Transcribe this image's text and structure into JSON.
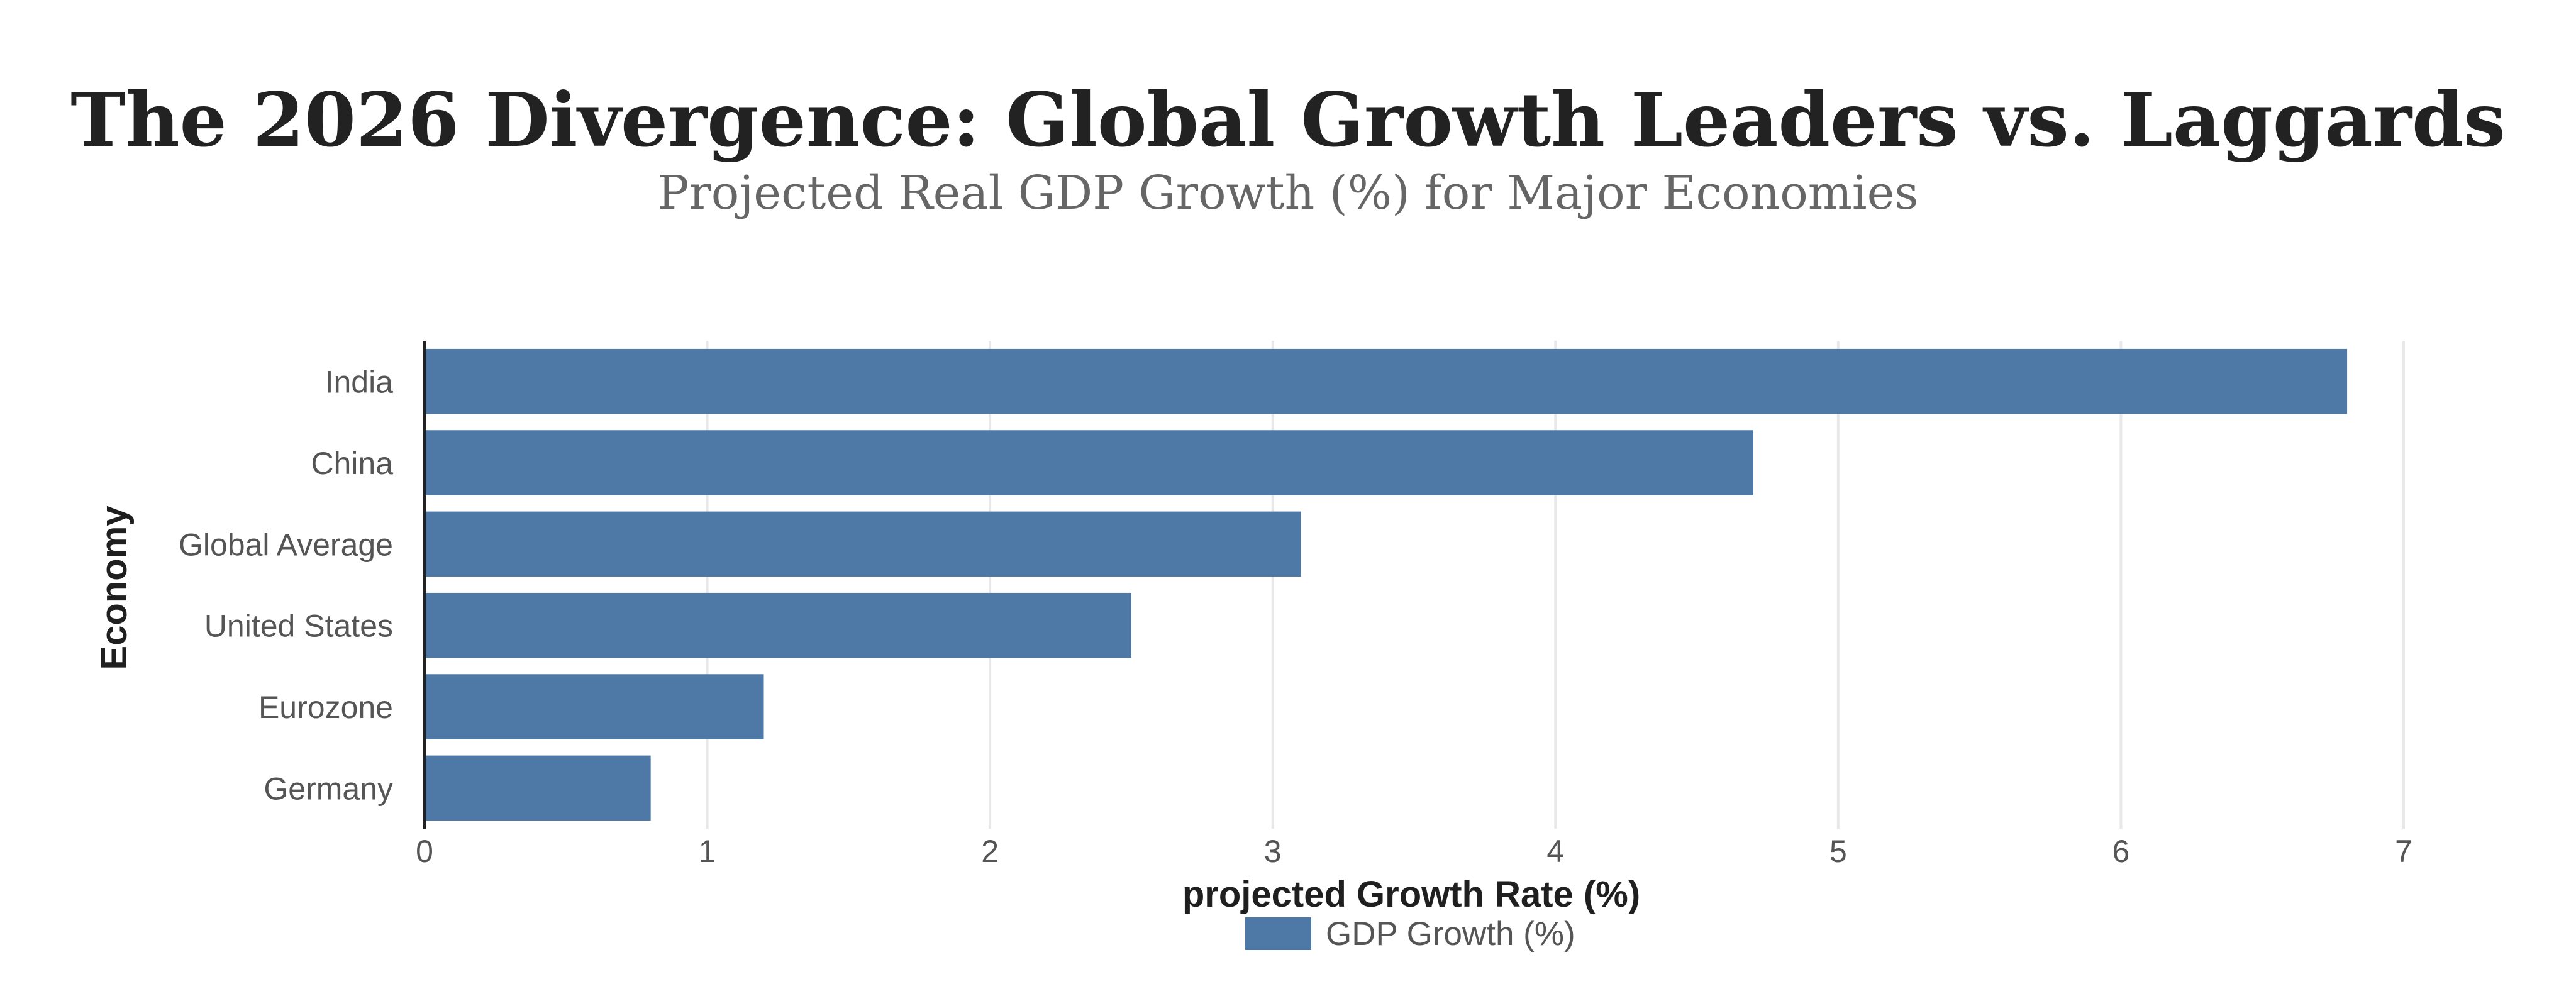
{
  "chart_data": {
    "type": "bar",
    "orientation": "horizontal",
    "title": "The 2026 Divergence: Global Growth Leaders vs. Laggards",
    "subtitle": "Projected Real GDP Growth (%) for Major Economies",
    "xlabel": "projected Growth Rate (%)",
    "ylabel": "Economy",
    "categories": [
      "India",
      "China",
      "Global Average",
      "United States",
      "Eurozone",
      "Germany"
    ],
    "series": [
      {
        "name": "GDP Growth (%)",
        "values": [
          6.8,
          4.7,
          3.1,
          2.5,
          1.2,
          0.8
        ],
        "color": "#4e79a7"
      }
    ],
    "xlim": [
      0,
      7
    ],
    "x_ticks": [
      0,
      1,
      2,
      3,
      4,
      5,
      6,
      7
    ],
    "grid": "vertical",
    "legend_position": "bottom-center"
  }
}
